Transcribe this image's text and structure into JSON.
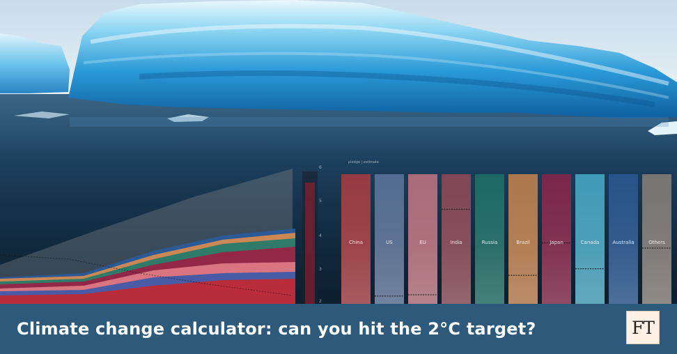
{
  "headline": "Climate change calculator: can you hit the 2°C target?",
  "logo_text": "FT",
  "chart_data": {
    "type": "bar",
    "header_text": "pledge | estimate",
    "categories": [
      "China",
      "US",
      "EU",
      "India",
      "Russia",
      "Brazil",
      "Japan",
      "Canada",
      "Australia",
      "Others"
    ],
    "marker_levels": [
      0,
      0.06,
      0.07,
      0.73,
      0,
      0.22,
      0.47,
      0.27,
      0,
      0.43
    ],
    "colors": [
      "#c63a3a",
      "#6a7fa8",
      "#e07e86",
      "#a64b55",
      "#1f7a6a",
      "#e8904a",
      "#9e1e45",
      "#4fc1de",
      "#2a5da0",
      "#9a8c80"
    ],
    "y_ticks": [
      "5",
      "4",
      "3",
      "2"
    ],
    "y_tick_extra": "6"
  }
}
